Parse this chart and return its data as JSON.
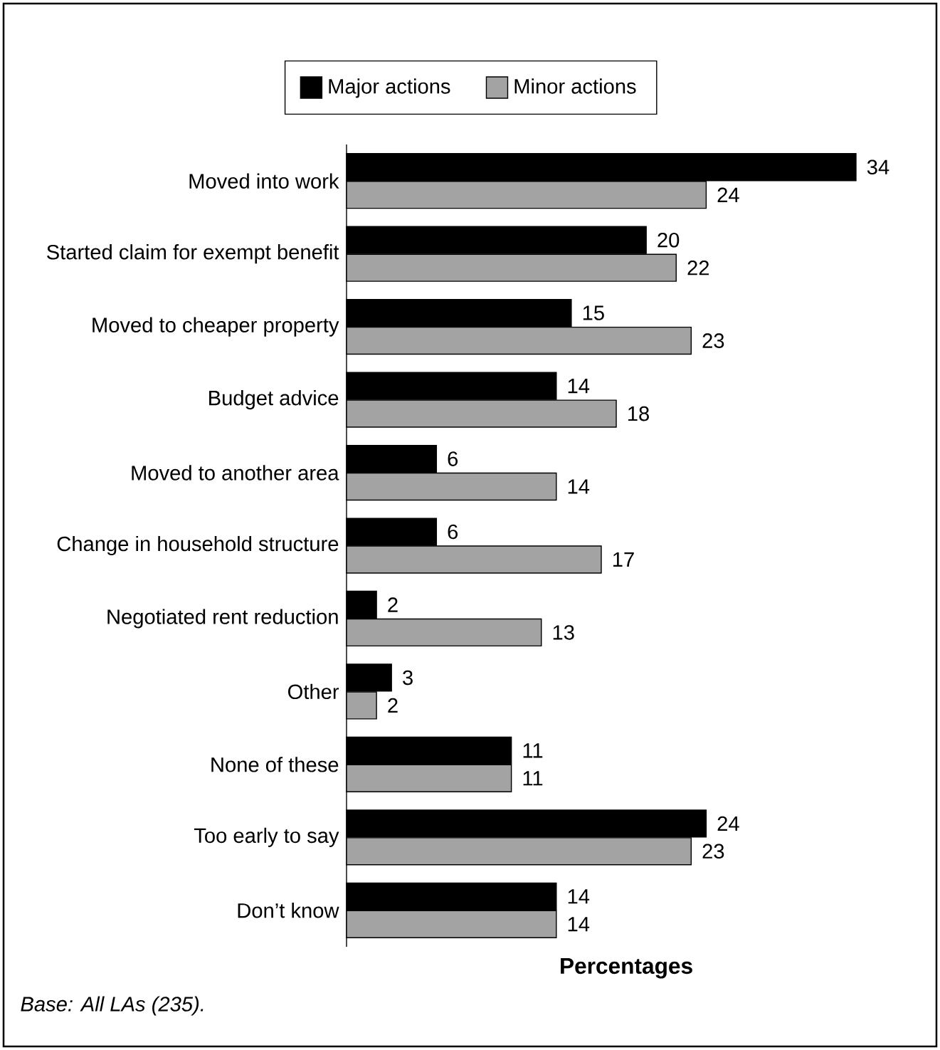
{
  "chart_data": {
    "type": "bar",
    "orientation": "horizontal",
    "xlabel": "**Percentages**",
    "categories": [
      "Moved into work",
      "Started claim for exempt benefit",
      "Moved to cheaper property",
      "Budget advice",
      "Moved to another area",
      "Change in household structure",
      "Negotiated rent reduction",
      "Other",
      "None of these",
      "Too early to say",
      "Don’t know"
    ],
    "series": [
      {
        "name": "Major actions",
        "color": "#000000",
        "values": [
          34,
          20,
          15,
          14,
          6,
          6,
          2,
          3,
          11,
          24,
          14
        ]
      },
      {
        "name": "Minor actions",
        "color": "#a3a3a3",
        "values": [
          24,
          22,
          23,
          18,
          14,
          17,
          13,
          2,
          11,
          23,
          14
        ]
      }
    ],
    "data_labels": true,
    "legend": "top",
    "annotations": [
      "*Base: All LAs (235).*"
    ]
  }
}
